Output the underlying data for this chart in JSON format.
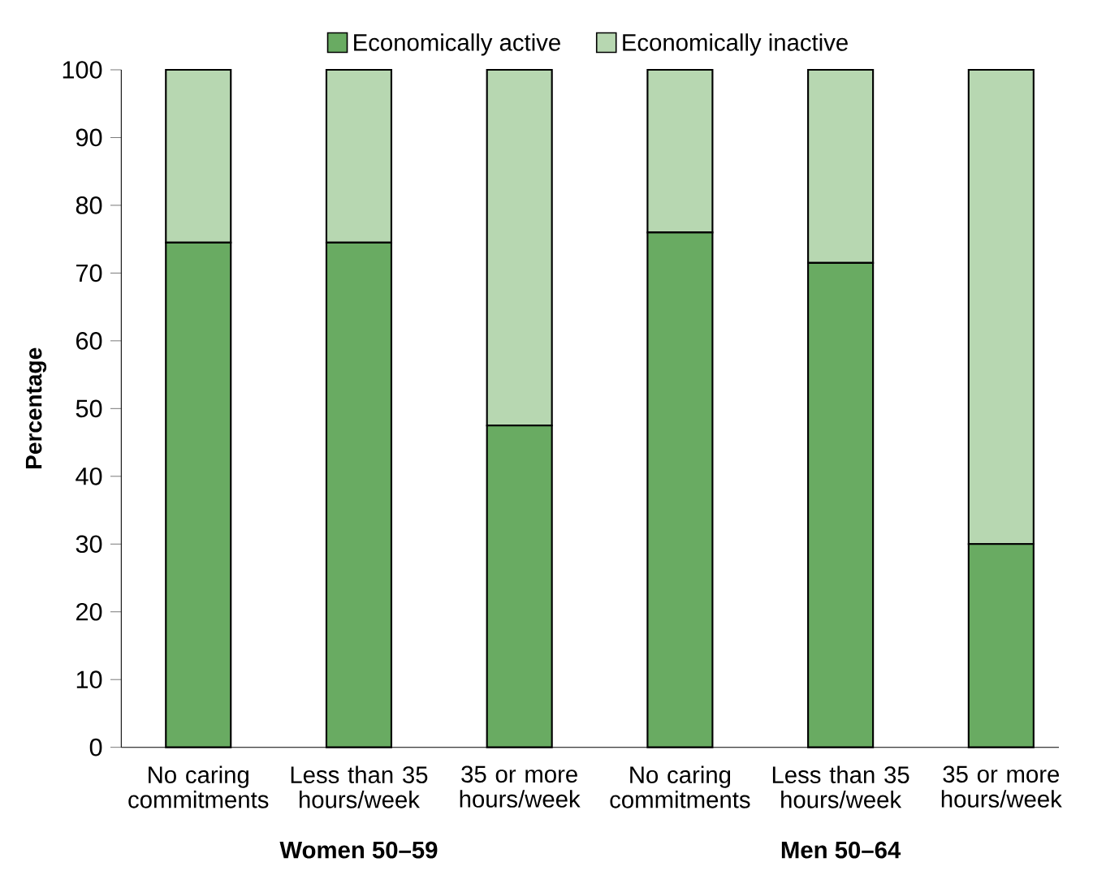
{
  "chart_data": {
    "type": "bar",
    "stacked": true,
    "ylabel": "Percentage",
    "categories": [
      "No caring commitments",
      "Less than 35 hours/week",
      "35 or more hours/week",
      "No caring commitments",
      "Less than 35 hours/week",
      "35 or more hours/week"
    ],
    "series": [
      {
        "name": "Economically active",
        "color": "#69ab62",
        "values": [
          74.5,
          74.5,
          47.5,
          76,
          71.5,
          30
        ]
      },
      {
        "name": "Economically inactive",
        "color": "#b7d7b1",
        "values": [
          25.5,
          25.5,
          52.5,
          24,
          28.5,
          70
        ]
      }
    ],
    "ylim": [
      0,
      100
    ],
    "yticks": [
      0,
      10,
      20,
      30,
      40,
      50,
      60,
      70,
      80,
      90,
      100
    ],
    "legend": "top",
    "grid": false,
    "annotations": [
      "Women 50–59",
      "Men 50–64"
    ]
  }
}
